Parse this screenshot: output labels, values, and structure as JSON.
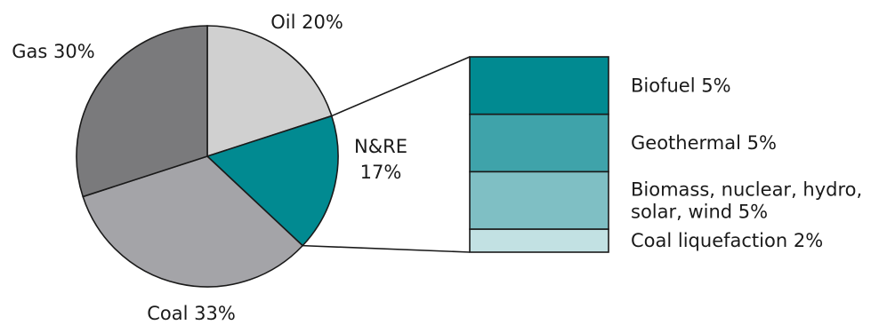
{
  "chart_data": [
    {
      "type": "pie",
      "slices": [
        {
          "label": "Oil",
          "value": 20,
          "text": "Oil 20%",
          "color": "#d0d0d0"
        },
        {
          "label": "N&RE",
          "value": 17,
          "text_lines": [
            "N&RE",
            "17%"
          ],
          "color": "#018a91"
        },
        {
          "label": "Coal",
          "value": 33,
          "text": "Coal 33%",
          "color": "#a4a4a8"
        },
        {
          "label": "Gas",
          "value": 30,
          "text": "Gas 30%",
          "color": "#7a7a7c"
        }
      ]
    },
    {
      "type": "bar",
      "stacked": true,
      "breakdown_of": "N&RE",
      "segments": [
        {
          "label": "Biofuel",
          "value": 5,
          "text_lines": [
            "Biofuel 5%"
          ],
          "color": "#018a91"
        },
        {
          "label": "Geothermal",
          "value": 5,
          "text_lines": [
            "Geothermal 5%"
          ],
          "color": "#3fa3aa"
        },
        {
          "label": "Biomass, nuclear, hydro, solar, wind",
          "value": 5,
          "text_lines": [
            "Biomass, nuclear, hydro,",
            "solar, wind 5%"
          ],
          "color": "#7fbfc4"
        },
        {
          "label": "Coal liquefaction",
          "value": 2,
          "text_lines": [
            "Coal liquefaction 2%"
          ],
          "color": "#c2e1e3"
        }
      ]
    }
  ]
}
